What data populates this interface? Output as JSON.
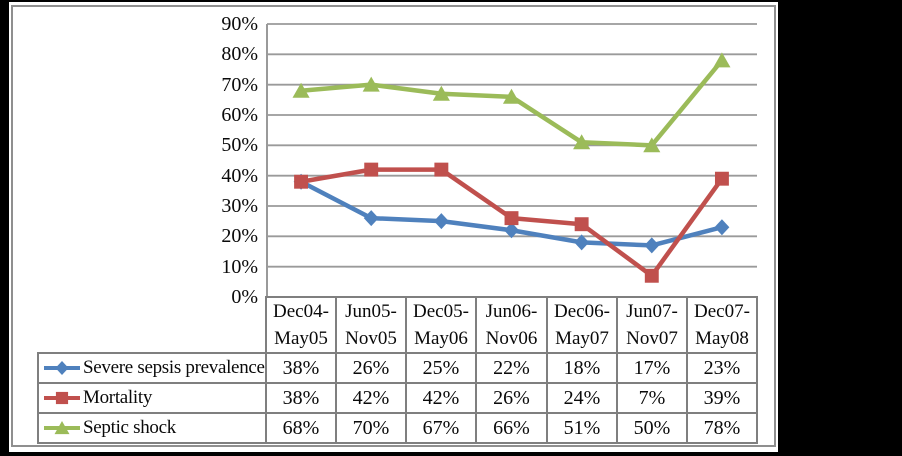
{
  "figure": {
    "canvas_background": "#000000",
    "figure_background": "#ffffff",
    "figure_border_color": "#8f8f8f"
  },
  "chart_data": {
    "type": "line",
    "title": "",
    "xlabel": "",
    "ylabel": "",
    "categories": [
      "Dec04-May05",
      "Jun05-Nov05",
      "Dec05-May06",
      "Jun06-Nov06",
      "Dec06-May07",
      "Jun07-Nov07",
      "Dec07-May08"
    ],
    "series": [
      {
        "name": "Severe sepsis prevalence",
        "marker": "diamond",
        "color": "#4F81BD",
        "values": [
          38,
          26,
          25,
          22,
          18,
          17,
          23
        ]
      },
      {
        "name": "Mortality",
        "marker": "square",
        "color": "#C0504D",
        "values": [
          38,
          42,
          42,
          26,
          24,
          7,
          39
        ]
      },
      {
        "name": "Septic shock",
        "marker": "triangle",
        "color": "#9BBB59",
        "values": [
          68,
          70,
          67,
          66,
          51,
          50,
          78
        ]
      }
    ],
    "value_suffix": "%",
    "ylim": [
      0,
      90
    ],
    "ytick_labels": [
      "0%",
      "10%",
      "20%",
      "30%",
      "40%",
      "50%",
      "60%",
      "70%",
      "80%",
      "90%"
    ],
    "grid": true,
    "gridline_color": "#9a9a9a",
    "axis_line_color": "#9a9a9a",
    "table_border_color": "#7f7f7f",
    "text_color": "#0a0a0a",
    "legend_position": "data-table-left",
    "data_table_shown": true
  }
}
